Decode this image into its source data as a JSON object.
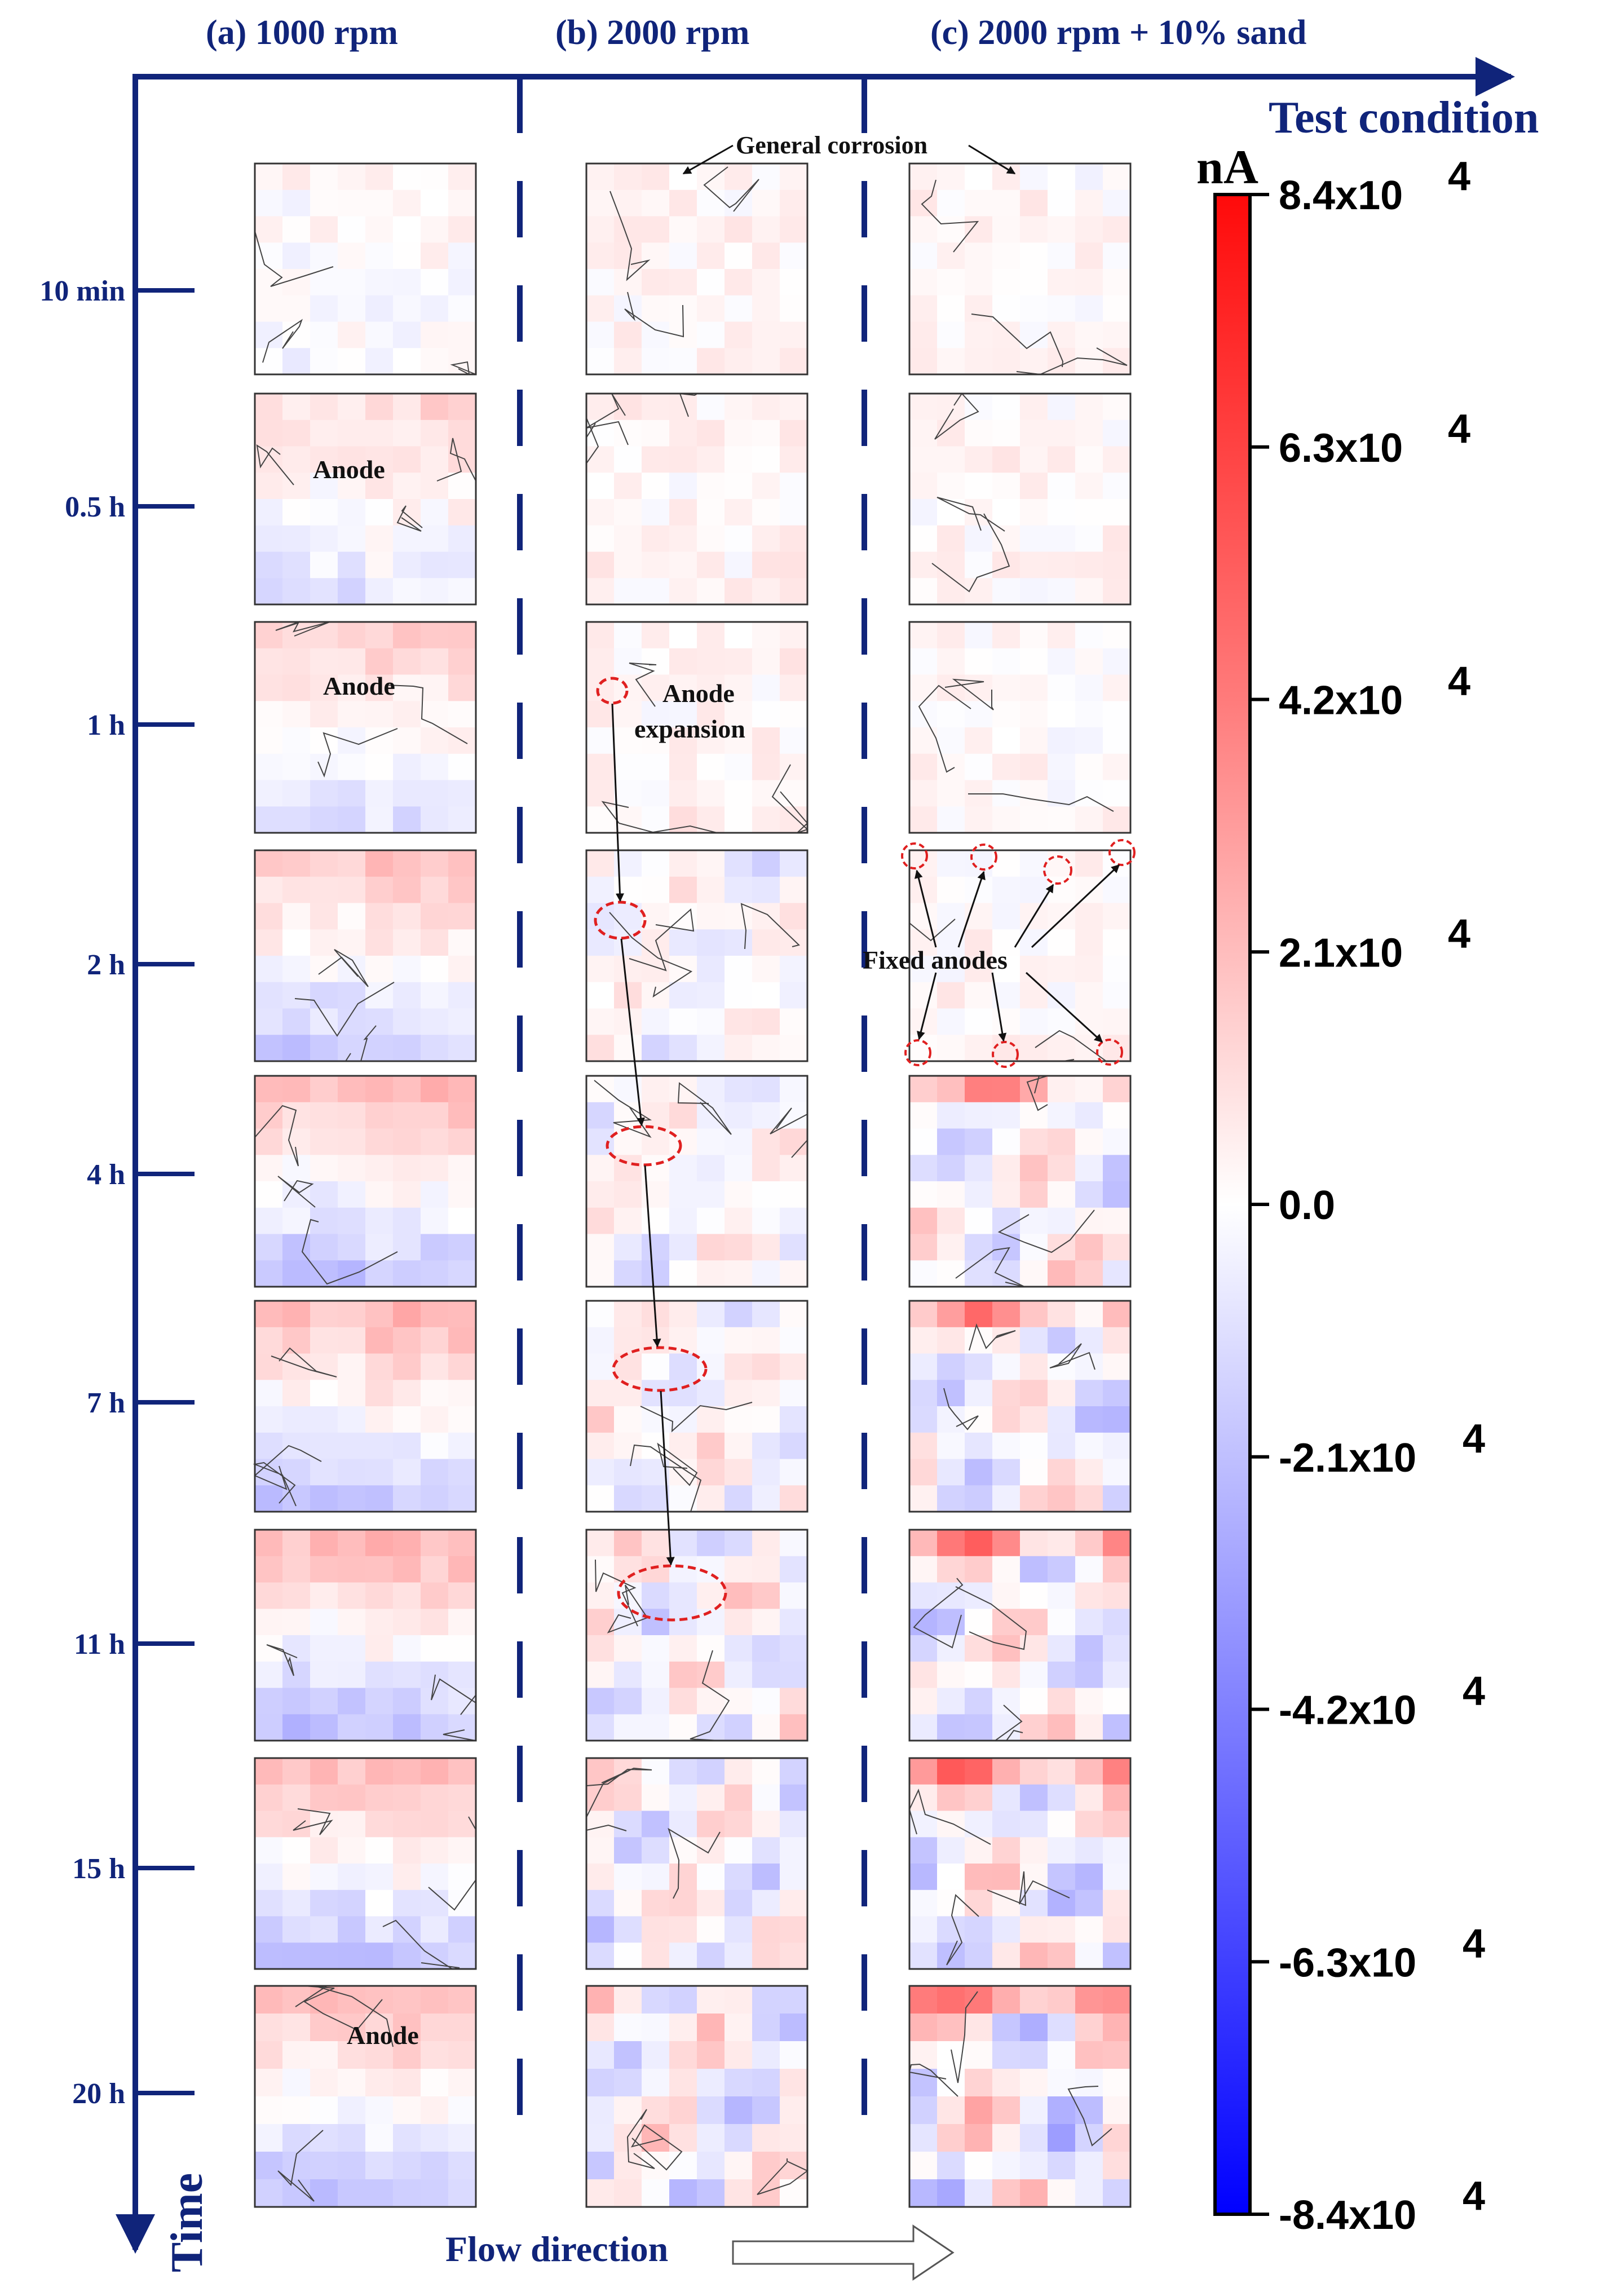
{
  "figure": {
    "columns": [
      {
        "id": "a",
        "title": "(a) 1000 rpm"
      },
      {
        "id": "b",
        "title": "(b) 2000 rpm"
      },
      {
        "id": "c",
        "title": "(c) 2000 rpm + 10% sand"
      }
    ],
    "x_axis_title": "Test condition",
    "y_axis_title": "Time",
    "time_points": [
      "10 min",
      "0.5 h",
      "1 h",
      "2 h",
      "4 h",
      "7 h",
      "11 h",
      "15 h",
      "20 h"
    ],
    "flow_direction_label": "Flow direction",
    "annotations": {
      "general_corrosion": "General corrosion",
      "anode": "Anode",
      "anode_expansion_line1": "Anode",
      "anode_expansion_line2": "expansion",
      "fixed_anodes": "Fixed anodes"
    },
    "colorbar": {
      "unit": "nA",
      "ticks": [
        "8.4x10",
        "6.3x10",
        "4.2x10",
        "2.1x10",
        "0.0",
        "-2.1x10",
        "-4.2x10",
        "-6.3x10",
        "-8.4x10"
      ],
      "exponent": "4",
      "range": [
        -84000,
        84000
      ],
      "colors": {
        "max": "#ff0000",
        "zero": "#ffffff",
        "min": "#0000ff"
      }
    },
    "colors": {
      "axis": "#10247a",
      "anode_marker": "#e02020"
    }
  }
}
